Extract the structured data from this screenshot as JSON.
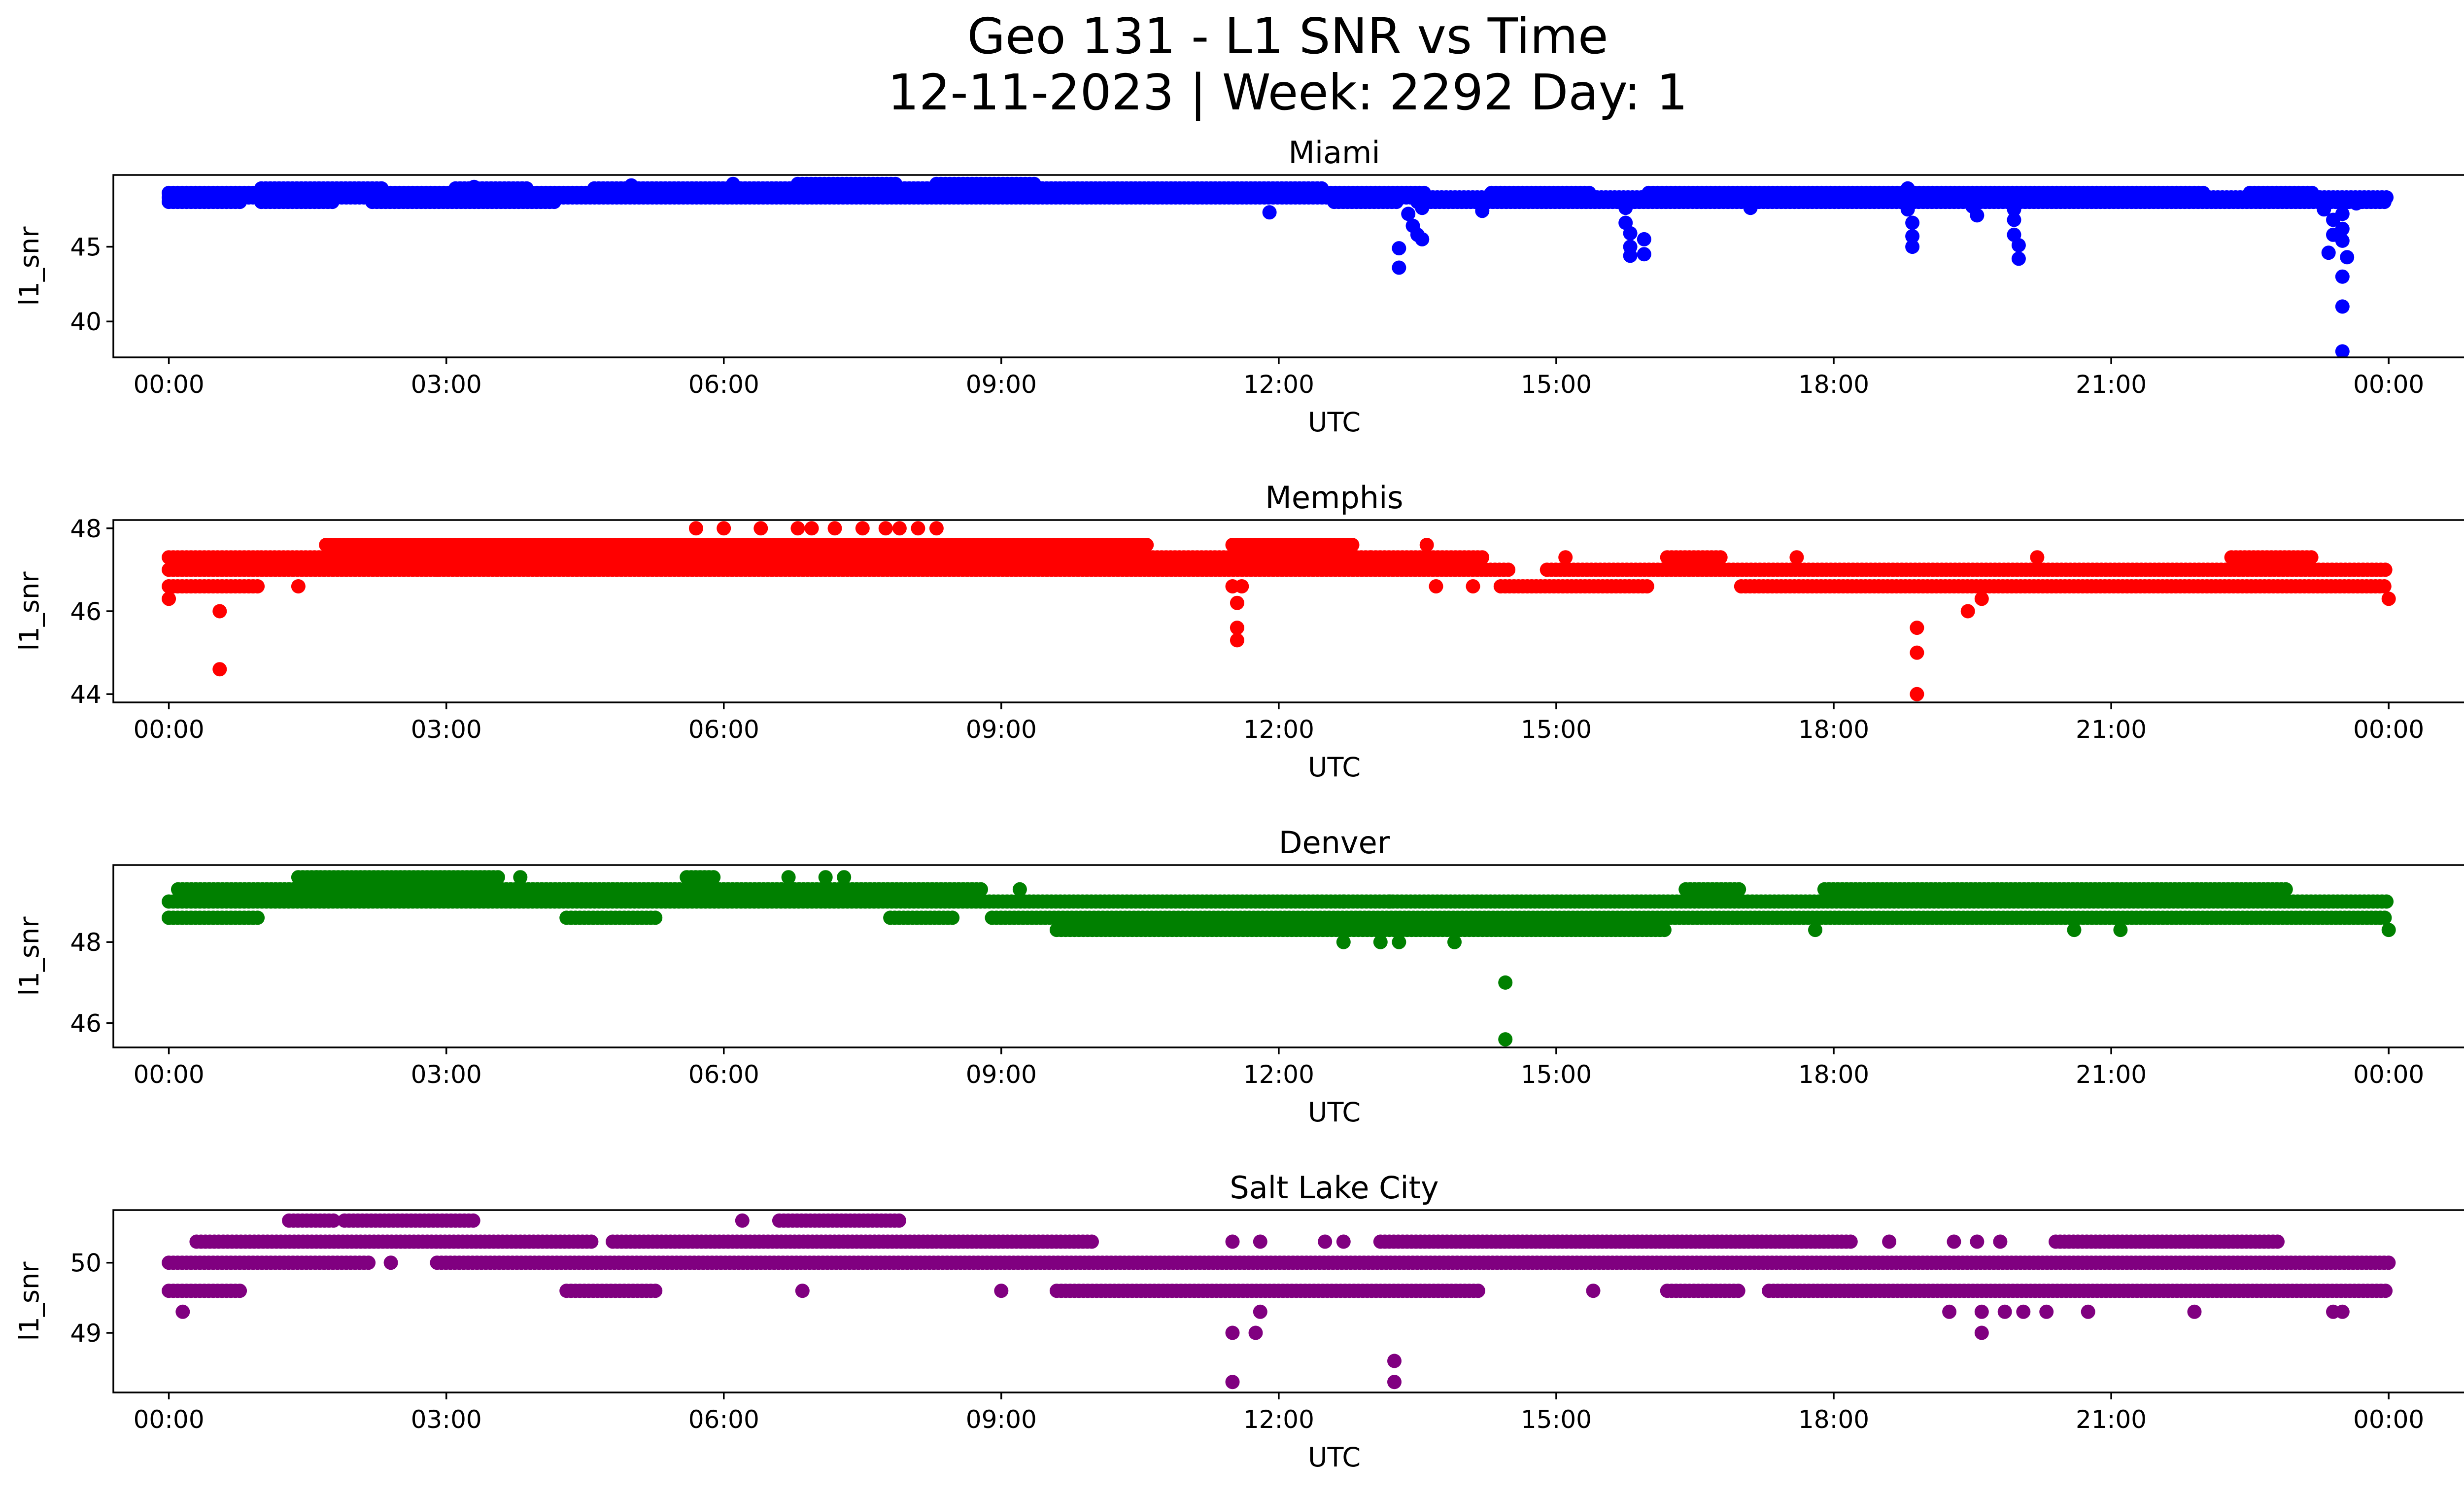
{
  "title_line1": "Geo 131 - L1 SNR vs Time",
  "title_line2": "12-11-2023 | Week: 2292 Day: 1",
  "chart_data": [
    {
      "type": "scatter",
      "title": "Miami",
      "xlabel": "UTC",
      "ylabel": "l1_snr",
      "color": "#0000ff",
      "xlim_hours": [
        -0.6,
        25.8
      ],
      "ylim": [
        37.6,
        49.8
      ],
      "x_ticks": [
        "00:00",
        "03:00",
        "06:00",
        "09:00",
        "12:00",
        "15:00",
        "18:00",
        "21:00",
        "00:00"
      ],
      "y_ticks": [
        40,
        45
      ],
      "y_tick_labels": [
        "40",
        "45"
      ],
      "bands": [
        {
          "y": 48.0,
          "segments": [
            [
              0.0,
              0.8
            ],
            [
              1.0,
              1.8
            ],
            [
              2.2,
              4.2
            ],
            [
              12.6,
              13.3
            ],
            [
              13.5,
              24.0
            ]
          ]
        },
        {
          "y": 48.3,
          "segments": [
            [
              0.0,
              24.0
            ]
          ]
        },
        {
          "y": 48.6,
          "segments": [
            [
              0.0,
              13.6
            ],
            [
              14.3,
              15.4
            ],
            [
              16.0,
              22.0
            ],
            [
              22.5,
              23.2
            ]
          ]
        },
        {
          "y": 48.9,
          "segments": [
            [
              1.0,
              2.3
            ],
            [
              3.1,
              3.9
            ],
            [
              4.6,
              12.5
            ]
          ]
        },
        {
          "y": 49.2,
          "segments": [
            [
              6.8,
              7.9
            ],
            [
              8.3,
              9.4
            ]
          ]
        }
      ],
      "points": [
        {
          "x": 2.3,
          "y": 48.9
        },
        {
          "x": 3.3,
          "y": 49.0
        },
        {
          "x": 5.0,
          "y": 49.1
        },
        {
          "x": 6.1,
          "y": 49.2
        },
        {
          "x": 11.9,
          "y": 47.3
        },
        {
          "x": 13.3,
          "y": 44.9
        },
        {
          "x": 13.3,
          "y": 43.6
        },
        {
          "x": 13.4,
          "y": 47.2
        },
        {
          "x": 13.45,
          "y": 46.4
        },
        {
          "x": 13.5,
          "y": 45.8
        },
        {
          "x": 13.55,
          "y": 47.6
        },
        {
          "x": 13.55,
          "y": 45.5
        },
        {
          "x": 14.2,
          "y": 47.4
        },
        {
          "x": 15.75,
          "y": 47.6
        },
        {
          "x": 15.75,
          "y": 46.6
        },
        {
          "x": 15.8,
          "y": 45.9
        },
        {
          "x": 15.8,
          "y": 45.0
        },
        {
          "x": 15.8,
          "y": 44.4
        },
        {
          "x": 15.95,
          "y": 45.5
        },
        {
          "x": 15.95,
          "y": 44.5
        },
        {
          "x": 17.1,
          "y": 47.6
        },
        {
          "x": 18.8,
          "y": 48.9
        },
        {
          "x": 18.8,
          "y": 47.5
        },
        {
          "x": 18.85,
          "y": 46.6
        },
        {
          "x": 18.85,
          "y": 45.7
        },
        {
          "x": 18.85,
          "y": 45.0
        },
        {
          "x": 19.5,
          "y": 47.7
        },
        {
          "x": 19.55,
          "y": 47.1
        },
        {
          "x": 19.95,
          "y": 47.5
        },
        {
          "x": 19.95,
          "y": 46.8
        },
        {
          "x": 19.95,
          "y": 45.8
        },
        {
          "x": 20.0,
          "y": 45.1
        },
        {
          "x": 20.0,
          "y": 44.2
        },
        {
          "x": 23.3,
          "y": 47.5
        },
        {
          "x": 23.4,
          "y": 46.8
        },
        {
          "x": 23.4,
          "y": 45.8
        },
        {
          "x": 23.35,
          "y": 44.6
        },
        {
          "x": 23.5,
          "y": 47.2
        },
        {
          "x": 23.5,
          "y": 46.2
        },
        {
          "x": 23.5,
          "y": 45.4
        },
        {
          "x": 23.55,
          "y": 44.3
        },
        {
          "x": 23.5,
          "y": 43.0
        },
        {
          "x": 23.5,
          "y": 41.0
        },
        {
          "x": 23.5,
          "y": 38.0
        },
        {
          "x": 23.65,
          "y": 47.9
        }
      ]
    },
    {
      "type": "scatter",
      "title": "Memphis",
      "xlabel": "UTC",
      "ylabel": "l1_snr",
      "color": "#ff0000",
      "xlim_hours": [
        -0.6,
        25.8
      ],
      "ylim": [
        43.8,
        48.2
      ],
      "x_ticks": [
        "00:00",
        "03:00",
        "06:00",
        "09:00",
        "12:00",
        "15:00",
        "18:00",
        "21:00",
        "00:00"
      ],
      "y_ticks": [
        44,
        46,
        48
      ],
      "y_tick_labels": [
        "44",
        "46",
        "48"
      ],
      "bands": [
        {
          "y": 46.6,
          "segments": [
            [
              0.0,
              1.0
            ],
            [
              14.4,
              16.0
            ],
            [
              17.0,
              24.0
            ]
          ]
        },
        {
          "y": 47.0,
          "segments": [
            [
              0.0,
              14.5
            ],
            [
              14.9,
              24.0
            ]
          ]
        },
        {
          "y": 47.3,
          "segments": [
            [
              0.0,
              1.0
            ],
            [
              1.0,
              13.0
            ],
            [
              13.0,
              14.2
            ],
            [
              16.2,
              16.8
            ],
            [
              22.3,
              23.2
            ]
          ]
        },
        {
          "y": 47.6,
          "segments": [
            [
              1.7,
              10.6
            ],
            [
              11.5,
              12.8
            ]
          ]
        }
      ],
      "points": [
        {
          "x": 0.0,
          "y": 46.3
        },
        {
          "x": 0.55,
          "y": 46.0
        },
        {
          "x": 0.55,
          "y": 44.6
        },
        {
          "x": 1.4,
          "y": 46.6
        },
        {
          "x": 2.9,
          "y": 47.0
        },
        {
          "x": 4.6,
          "y": 47.0
        },
        {
          "x": 5.7,
          "y": 48.0
        },
        {
          "x": 6.0,
          "y": 48.0
        },
        {
          "x": 6.4,
          "y": 48.0
        },
        {
          "x": 6.8,
          "y": 48.0
        },
        {
          "x": 6.95,
          "y": 48.0
        },
        {
          "x": 7.2,
          "y": 48.0
        },
        {
          "x": 7.5,
          "y": 48.0
        },
        {
          "x": 7.75,
          "y": 48.0
        },
        {
          "x": 7.9,
          "y": 48.0
        },
        {
          "x": 8.1,
          "y": 48.0
        },
        {
          "x": 8.3,
          "y": 48.0
        },
        {
          "x": 11.5,
          "y": 46.6
        },
        {
          "x": 11.55,
          "y": 46.2
        },
        {
          "x": 11.55,
          "y": 45.6
        },
        {
          "x": 11.55,
          "y": 45.3
        },
        {
          "x": 11.6,
          "y": 46.6
        },
        {
          "x": 13.7,
          "y": 46.6
        },
        {
          "x": 14.1,
          "y": 46.6
        },
        {
          "x": 13.6,
          "y": 47.6
        },
        {
          "x": 18.9,
          "y": 45.6
        },
        {
          "x": 18.9,
          "y": 45.0
        },
        {
          "x": 18.9,
          "y": 44.0
        },
        {
          "x": 19.45,
          "y": 46.0
        },
        {
          "x": 19.6,
          "y": 46.3
        },
        {
          "x": 24.0,
          "y": 46.3
        },
        {
          "x": 17.6,
          "y": 47.3
        },
        {
          "x": 20.2,
          "y": 47.3
        },
        {
          "x": 15.1,
          "y": 47.3
        }
      ]
    },
    {
      "type": "scatter",
      "title": "Denver",
      "xlabel": "UTC",
      "ylabel": "l1_snr",
      "color": "#008000",
      "xlim_hours": [
        -0.6,
        25.8
      ],
      "ylim": [
        45.4,
        49.9
      ],
      "x_ticks": [
        "00:00",
        "03:00",
        "06:00",
        "09:00",
        "12:00",
        "15:00",
        "18:00",
        "21:00",
        "00:00"
      ],
      "y_ticks": [
        46,
        48
      ],
      "y_tick_labels": [
        "46",
        "48"
      ],
      "bands": [
        {
          "y": 48.3,
          "segments": [
            [
              9.6,
              16.2
            ]
          ]
        },
        {
          "y": 48.6,
          "segments": [
            [
              0.0,
              1.0
            ],
            [
              4.3,
              5.3
            ],
            [
              7.8,
              8.5
            ],
            [
              8.9,
              24.0
            ]
          ]
        },
        {
          "y": 49.0,
          "segments": [
            [
              0.0,
              24.0
            ]
          ]
        },
        {
          "y": 49.3,
          "segments": [
            [
              0.1,
              4.8
            ],
            [
              4.8,
              8.8
            ],
            [
              16.4,
              17.0
            ],
            [
              17.9,
              22.9
            ]
          ]
        },
        {
          "y": 49.6,
          "segments": [
            [
              1.4,
              3.6
            ],
            [
              5.6,
              5.9
            ]
          ]
        }
      ],
      "points": [
        {
          "x": 0.0,
          "y": 48.6
        },
        {
          "x": 1.6,
          "y": 49.6
        },
        {
          "x": 3.8,
          "y": 49.6
        },
        {
          "x": 6.7,
          "y": 49.6
        },
        {
          "x": 7.1,
          "y": 49.6
        },
        {
          "x": 7.3,
          "y": 49.6
        },
        {
          "x": 12.7,
          "y": 48.0
        },
        {
          "x": 13.1,
          "y": 48.0
        },
        {
          "x": 13.3,
          "y": 48.0
        },
        {
          "x": 13.9,
          "y": 48.0
        },
        {
          "x": 14.45,
          "y": 47.0
        },
        {
          "x": 14.45,
          "y": 45.6
        },
        {
          "x": 17.8,
          "y": 48.3
        },
        {
          "x": 20.6,
          "y": 48.3
        },
        {
          "x": 21.1,
          "y": 48.3
        },
        {
          "x": 24.0,
          "y": 48.3
        },
        {
          "x": 9.2,
          "y": 49.3
        },
        {
          "x": 12.7,
          "y": 49.0
        },
        {
          "x": 13.2,
          "y": 49.0
        }
      ]
    },
    {
      "type": "scatter",
      "title": "Salt Lake City",
      "xlabel": "UTC",
      "ylabel": "l1_snr",
      "color": "#800080",
      "xlim_hours": [
        -0.6,
        25.8
      ],
      "ylim": [
        48.15,
        50.75
      ],
      "x_ticks": [
        "00:00",
        "03:00",
        "06:00",
        "09:00",
        "12:00",
        "15:00",
        "18:00",
        "21:00",
        "00:00"
      ],
      "y_ticks": [
        49,
        50
      ],
      "y_tick_labels": [
        "49",
        "50"
      ],
      "bands": [
        {
          "y": 49.6,
          "segments": [
            [
              0.0,
              0.8
            ],
            [
              4.3,
              5.3
            ],
            [
              9.6,
              14.2
            ],
            [
              16.2,
              17.0
            ],
            [
              17.3,
              24.0
            ]
          ]
        },
        {
          "y": 50.0,
          "segments": [
            [
              0.0,
              2.2
            ],
            [
              2.9,
              24.0
            ]
          ]
        },
        {
          "y": 50.3,
          "segments": [
            [
              0.3,
              4.6
            ],
            [
              4.8,
              10.0
            ],
            [
              13.1,
              18.2
            ],
            [
              20.4,
              22.8
            ]
          ]
        },
        {
          "y": 50.6,
          "segments": [
            [
              1.3,
              1.8
            ],
            [
              1.9,
              3.3
            ],
            [
              6.6,
              7.9
            ]
          ]
        }
      ],
      "points": [
        {
          "x": 0.15,
          "y": 49.3
        },
        {
          "x": 2.4,
          "y": 50.0
        },
        {
          "x": 6.2,
          "y": 50.6
        },
        {
          "x": 6.85,
          "y": 49.6
        },
        {
          "x": 9.0,
          "y": 49.6
        },
        {
          "x": 11.5,
          "y": 50.3
        },
        {
          "x": 11.8,
          "y": 50.3
        },
        {
          "x": 11.5,
          "y": 49.0
        },
        {
          "x": 11.75,
          "y": 49.0
        },
        {
          "x": 11.8,
          "y": 49.3
        },
        {
          "x": 11.5,
          "y": 48.3
        },
        {
          "x": 12.5,
          "y": 50.3
        },
        {
          "x": 12.7,
          "y": 50.3
        },
        {
          "x": 13.25,
          "y": 48.6
        },
        {
          "x": 13.25,
          "y": 48.3
        },
        {
          "x": 15.4,
          "y": 49.6
        },
        {
          "x": 18.6,
          "y": 50.3
        },
        {
          "x": 19.3,
          "y": 50.3
        },
        {
          "x": 19.55,
          "y": 50.3
        },
        {
          "x": 19.8,
          "y": 50.3
        },
        {
          "x": 19.25,
          "y": 49.3
        },
        {
          "x": 19.6,
          "y": 49.3
        },
        {
          "x": 19.6,
          "y": 49.0
        },
        {
          "x": 19.85,
          "y": 49.3
        },
        {
          "x": 20.05,
          "y": 49.3
        },
        {
          "x": 20.3,
          "y": 49.3
        },
        {
          "x": 20.75,
          "y": 49.3
        },
        {
          "x": 21.9,
          "y": 49.3
        },
        {
          "x": 23.4,
          "y": 49.3
        },
        {
          "x": 23.5,
          "y": 49.3
        }
      ]
    }
  ]
}
